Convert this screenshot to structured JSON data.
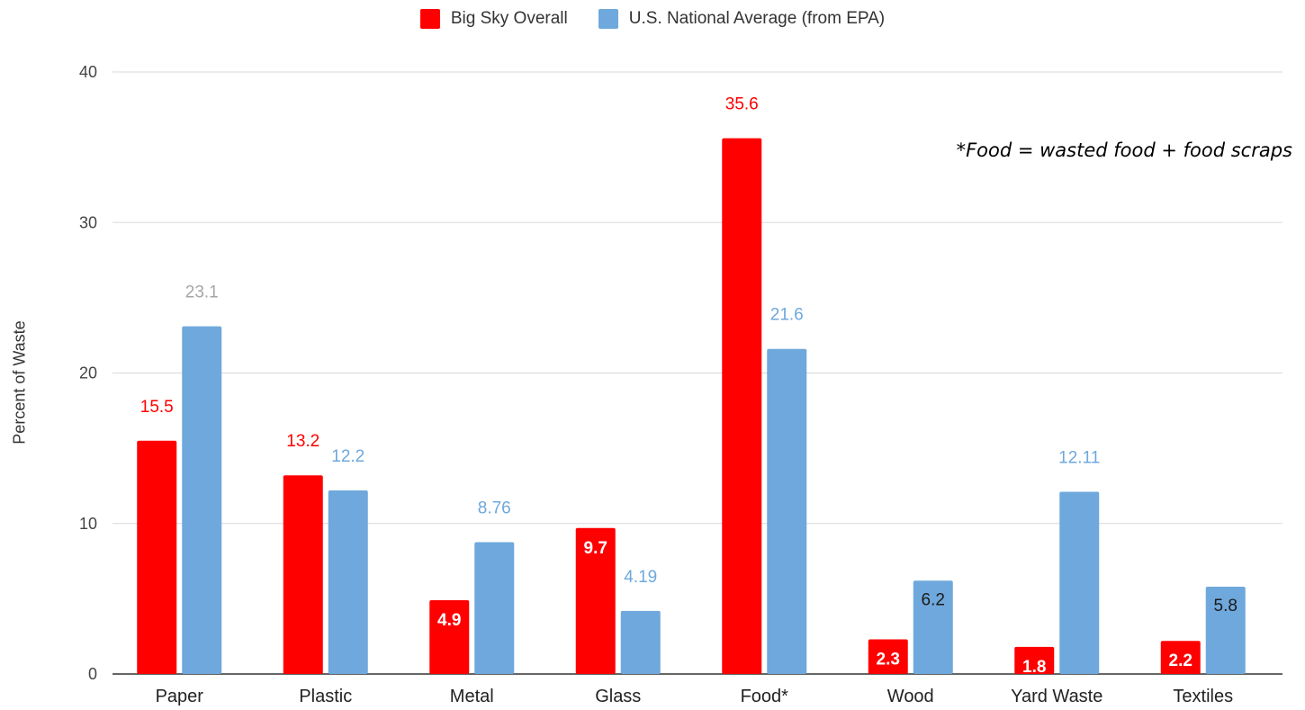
{
  "chart_data": {
    "type": "bar",
    "categories": [
      "Paper",
      "Plastic",
      "Metal",
      "Glass",
      "Food*",
      "Wood",
      "Yard Waste",
      "Textiles"
    ],
    "series": [
      {
        "name": "Big Sky Overall",
        "color": "#ff0000",
        "values": [
          15.5,
          13.2,
          4.9,
          9.7,
          35.6,
          2.3,
          1.8,
          2.2
        ],
        "labels": [
          "15.5",
          "13.2",
          "4.9",
          "9.7",
          "35.6",
          "2.3",
          "1.8",
          "2.2"
        ]
      },
      {
        "name": "U.S. National Average (from EPA)",
        "color": "#6fa8dc",
        "values": [
          23.1,
          12.2,
          8.76,
          4.19,
          21.6,
          6.2,
          12.11,
          5.8
        ],
        "labels": [
          "23.1",
          "12.2",
          "8.76",
          "4.19",
          "21.6",
          "6.2",
          "12.11",
          "5.8"
        ]
      }
    ],
    "ylabel": "Percent of Waste",
    "xlabel": "",
    "ylim": [
      0,
      40
    ],
    "yticks": [
      "0",
      "10",
      "20",
      "30",
      "40"
    ],
    "grid": true,
    "legend_position": "top-center",
    "annotation": "*Food = wasted food + food scraps"
  }
}
